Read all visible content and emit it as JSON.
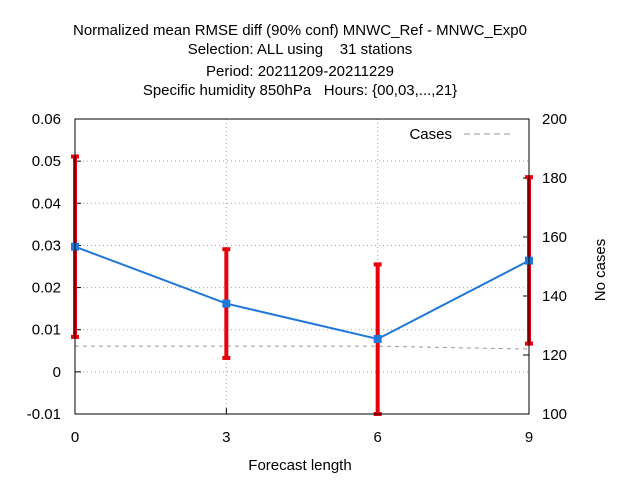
{
  "chart_data": {
    "type": "line",
    "title_lines": [
      "Normalized mean RMSE diff (90% conf) MNWC_Ref - MNWC_Exp0",
      "Selection: ALL using    31 stations",
      "Period: 20211209-20211229",
      "Specific humidity 850hPa   Hours: {00,03,...,21}"
    ],
    "xlabel": "Forecast length",
    "ylabel": "",
    "y2label": "No cases",
    "x": [
      0,
      3,
      6,
      9
    ],
    "x_ticks": [
      "0",
      "3",
      "6",
      "9"
    ],
    "xlim": [
      0,
      9
    ],
    "ylim": [
      -0.01,
      0.06
    ],
    "y_ticks": [
      "-0.01",
      "0",
      "0.01",
      "0.02",
      "0.03",
      "0.04",
      "0.05",
      "0.06"
    ],
    "y2lim": [
      100,
      200
    ],
    "y2_ticks": [
      "100",
      "120",
      "140",
      "160",
      "180",
      "200"
    ],
    "grid": true,
    "legend_position": "top-right",
    "series": [
      {
        "values": [
          0.0297,
          0.0162,
          0.0078,
          0.0264
        ],
        "error_low": [
          0.0083,
          0.0033,
          -0.01,
          0.0067
        ],
        "error_high": [
          0.0511,
          0.0291,
          0.0255,
          0.0462
        ],
        "color": "#1f78d8",
        "error_color": "#e8000b",
        "axis": "y"
      },
      {
        "name": "Cases",
        "values": [
          123,
          123,
          123,
          122
        ],
        "color": "#999999",
        "dashed": true,
        "axis": "y2"
      }
    ]
  }
}
